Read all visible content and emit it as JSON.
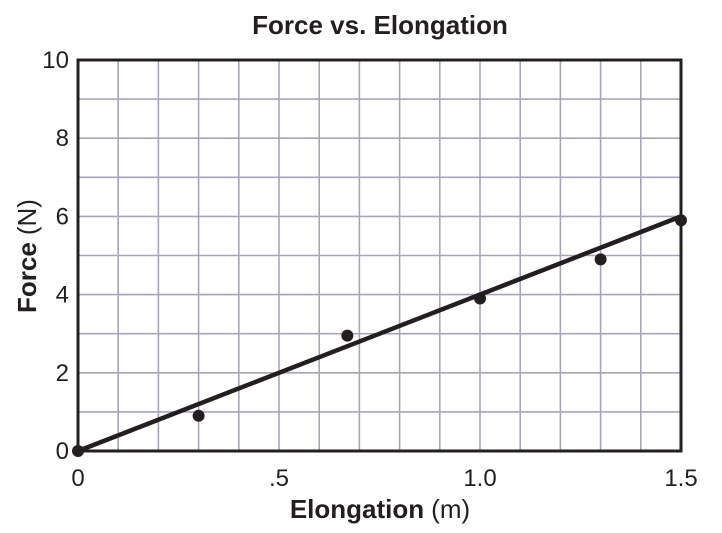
{
  "chart_data": {
    "type": "scatter",
    "title": "Force vs. Elongation",
    "xlabel": {
      "name": "Elongation",
      "unit": "(m)"
    },
    "ylabel": {
      "name": "Force",
      "unit": "(N)"
    },
    "xlim": [
      0,
      1.5
    ],
    "ylim": [
      0,
      10
    ],
    "x_ticks": [
      {
        "value": 0,
        "label": "0"
      },
      {
        "value": 0.5,
        "label": ".5"
      },
      {
        "value": 1.0,
        "label": "1.0"
      },
      {
        "value": 1.5,
        "label": "1.5"
      }
    ],
    "y_ticks": [
      {
        "value": 0,
        "label": "0"
      },
      {
        "value": 2,
        "label": "2"
      },
      {
        "value": 4,
        "label": "4"
      },
      {
        "value": 6,
        "label": "6"
      },
      {
        "value": 8,
        "label": "8"
      },
      {
        "value": 10,
        "label": "10"
      }
    ],
    "x_grid_step": 0.1,
    "y_grid_step": 1,
    "grid": true,
    "points": [
      {
        "x": 0,
        "y": 0
      },
      {
        "x": 0.3,
        "y": 0.9
      },
      {
        "x": 0.67,
        "y": 2.95
      },
      {
        "x": 1.0,
        "y": 3.9
      },
      {
        "x": 1.3,
        "y": 4.9
      },
      {
        "x": 1.5,
        "y": 5.9
      }
    ],
    "fit_line": {
      "x": [
        0,
        1.5
      ],
      "y": [
        0,
        6
      ]
    },
    "colors": {
      "ink": "#231f20",
      "grid": "#a7a6b8"
    }
  }
}
